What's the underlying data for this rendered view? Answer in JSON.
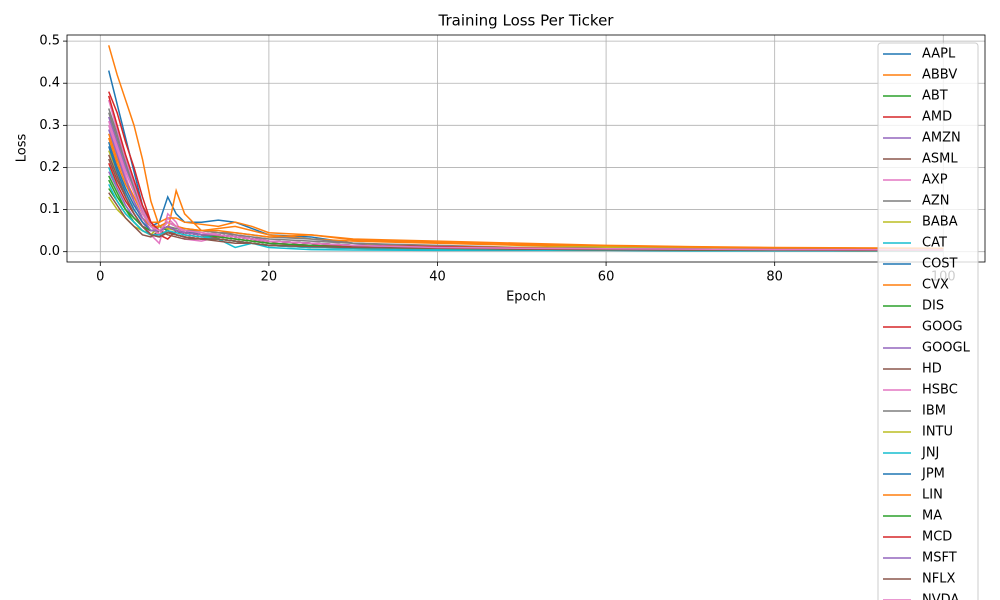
{
  "chart_data": {
    "type": "line",
    "title": "Training Loss Per Ticker",
    "x_label": "Epoch",
    "y_label": "Loss",
    "x": [
      1,
      2,
      3,
      4,
      5,
      6,
      7,
      8,
      9,
      10,
      12,
      14,
      16,
      18,
      20,
      25,
      30,
      40,
      50,
      60,
      70,
      80,
      90,
      100
    ],
    "xlim": [
      -3.95,
      104.95
    ],
    "xticks": [
      0,
      20,
      40,
      60,
      80,
      100
    ],
    "ylim": [
      -0.0245,
      0.5145
    ],
    "yticks": [
      {
        "value": 0,
        "label": "0.0"
      },
      0.1,
      0.2,
      0.3,
      0.4,
      0.5
    ],
    "grid": true,
    "legend": "upper right",
    "series": [
      {
        "name": "AAPL",
        "color": "#1f77b4",
        "values": [
          0.43,
          0.35,
          0.27,
          0.19,
          0.11,
          0.06,
          0.07,
          0.13,
          0.09,
          0.07,
          0.07,
          0.075,
          0.07,
          0.055,
          0.04,
          0.035,
          0.02,
          0.012,
          0.009,
          0.007,
          0.006,
          0.005,
          0.005,
          0.004
        ]
      },
      {
        "name": "ABBV",
        "color": "#ff7f0e",
        "values": [
          0.49,
          0.42,
          0.36,
          0.3,
          0.22,
          0.12,
          0.06,
          0.05,
          0.145,
          0.09,
          0.05,
          0.055,
          0.06,
          0.05,
          0.04,
          0.03,
          0.025,
          0.02,
          0.015,
          0.012,
          0.01,
          0.009,
          0.008,
          0.007
        ]
      },
      {
        "name": "ABT",
        "color": "#2ca02c",
        "values": [
          0.17,
          0.13,
          0.1,
          0.07,
          0.05,
          0.04,
          0.06,
          0.05,
          0.04,
          0.035,
          0.03,
          0.03,
          0.025,
          0.02,
          0.015,
          0.01,
          0.008,
          0.006,
          0.005,
          0.004,
          0.004,
          0.003,
          0.003,
          0.003
        ]
      },
      {
        "name": "AMD",
        "color": "#d62728",
        "values": [
          0.38,
          0.33,
          0.26,
          0.2,
          0.13,
          0.07,
          0.04,
          0.03,
          0.05,
          0.04,
          0.035,
          0.04,
          0.035,
          0.03,
          0.02,
          0.015,
          0.012,
          0.01,
          0.008,
          0.007,
          0.006,
          0.005,
          0.005,
          0.004
        ]
      },
      {
        "name": "AMZN",
        "color": "#9467bd",
        "values": [
          0.32,
          0.26,
          0.2,
          0.15,
          0.1,
          0.06,
          0.05,
          0.07,
          0.06,
          0.05,
          0.045,
          0.04,
          0.035,
          0.03,
          0.025,
          0.02,
          0.015,
          0.01,
          0.008,
          0.007,
          0.006,
          0.005,
          0.005,
          0.004
        ]
      },
      {
        "name": "ASML",
        "color": "#8c564b",
        "values": [
          0.22,
          0.17,
          0.13,
          0.09,
          0.06,
          0.04,
          0.035,
          0.05,
          0.04,
          0.035,
          0.03,
          0.03,
          0.025,
          0.02,
          0.015,
          0.012,
          0.01,
          0.008,
          0.006,
          0.005,
          0.004,
          0.004,
          0.003,
          0.003
        ]
      },
      {
        "name": "AXP",
        "color": "#e377c2",
        "values": [
          0.3,
          0.24,
          0.18,
          0.12,
          0.07,
          0.04,
          0.02,
          0.09,
          0.07,
          0.03,
          0.025,
          0.035,
          0.04,
          0.03,
          0.02,
          0.015,
          0.012,
          0.009,
          0.007,
          0.006,
          0.005,
          0.005,
          0.004,
          0.004
        ]
      },
      {
        "name": "AZN",
        "color": "#7f7f7f",
        "values": [
          0.34,
          0.28,
          0.22,
          0.16,
          0.1,
          0.06,
          0.05,
          0.06,
          0.055,
          0.05,
          0.05,
          0.045,
          0.045,
          0.04,
          0.035,
          0.03,
          0.02,
          0.012,
          0.01,
          0.008,
          0.007,
          0.006,
          0.005,
          0.005
        ]
      },
      {
        "name": "BABA",
        "color": "#bcbd22",
        "values": [
          0.13,
          0.1,
          0.08,
          0.06,
          0.05,
          0.04,
          0.06,
          0.055,
          0.05,
          0.045,
          0.04,
          0.04,
          0.035,
          0.03,
          0.025,
          0.02,
          0.015,
          0.012,
          0.01,
          0.012,
          0.01,
          0.009,
          0.008,
          0.008
        ]
      },
      {
        "name": "CAT",
        "color": "#17becf",
        "values": [
          0.2,
          0.15,
          0.11,
          0.08,
          0.06,
          0.05,
          0.05,
          0.06,
          0.05,
          0.045,
          0.04,
          0.03,
          0.01,
          0.02,
          0.01,
          0.005,
          0.004,
          0.003,
          0.003,
          0.003,
          0.002,
          0.002,
          0.002,
          0.002
        ]
      },
      {
        "name": "COST",
        "color": "#1f77b4",
        "values": [
          0.26,
          0.2,
          0.15,
          0.11,
          0.08,
          0.06,
          0.06,
          0.07,
          0.06,
          0.05,
          0.04,
          0.04,
          0.035,
          0.03,
          0.025,
          0.02,
          0.015,
          0.01,
          0.008,
          0.007,
          0.006,
          0.005,
          0.005,
          0.004
        ]
      },
      {
        "name": "CVX",
        "color": "#ff7f0e",
        "values": [
          0.28,
          0.22,
          0.17,
          0.13,
          0.09,
          0.07,
          0.07,
          0.08,
          0.08,
          0.07,
          0.065,
          0.06,
          0.07,
          0.06,
          0.045,
          0.04,
          0.03,
          0.025,
          0.02,
          0.015,
          0.012,
          0.01,
          0.009,
          0.008
        ]
      },
      {
        "name": "DIS",
        "color": "#2ca02c",
        "values": [
          0.15,
          0.12,
          0.09,
          0.07,
          0.05,
          0.04,
          0.04,
          0.05,
          0.04,
          0.035,
          0.03,
          0.03,
          0.025,
          0.02,
          0.015,
          0.012,
          0.01,
          0.008,
          0.006,
          0.005,
          0.004,
          0.004,
          0.003,
          0.003
        ]
      },
      {
        "name": "GOOG",
        "color": "#d62728",
        "values": [
          0.21,
          0.16,
          0.12,
          0.09,
          0.06,
          0.04,
          0.04,
          0.05,
          0.04,
          0.035,
          0.03,
          0.035,
          0.03,
          0.025,
          0.02,
          0.015,
          0.012,
          0.01,
          0.008,
          0.007,
          0.006,
          0.005,
          0.005,
          0.004
        ]
      },
      {
        "name": "GOOGL",
        "color": "#9467bd",
        "values": [
          0.19,
          0.15,
          0.11,
          0.08,
          0.06,
          0.05,
          0.05,
          0.06,
          0.05,
          0.045,
          0.04,
          0.04,
          0.035,
          0.03,
          0.025,
          0.02,
          0.015,
          0.01,
          0.008,
          0.007,
          0.006,
          0.005,
          0.005,
          0.004
        ]
      },
      {
        "name": "HD",
        "color": "#8c564b",
        "values": [
          0.14,
          0.11,
          0.08,
          0.06,
          0.04,
          0.035,
          0.05,
          0.04,
          0.035,
          0.03,
          0.03,
          0.025,
          0.02,
          0.02,
          0.015,
          0.01,
          0.008,
          0.006,
          0.005,
          0.004,
          0.004,
          0.003,
          0.003,
          0.003
        ]
      },
      {
        "name": "HSBC",
        "color": "#e377c2",
        "values": [
          0.36,
          0.29,
          0.22,
          0.16,
          0.1,
          0.06,
          0.04,
          0.08,
          0.06,
          0.045,
          0.04,
          0.045,
          0.04,
          0.035,
          0.025,
          0.02,
          0.015,
          0.01,
          0.008,
          0.007,
          0.006,
          0.005,
          0.005,
          0.004
        ]
      },
      {
        "name": "IBM",
        "color": "#7f7f7f",
        "values": [
          0.33,
          0.27,
          0.21,
          0.15,
          0.09,
          0.06,
          0.06,
          0.07,
          0.06,
          0.055,
          0.05,
          0.045,
          0.04,
          0.035,
          0.03,
          0.025,
          0.02,
          0.015,
          0.01,
          0.008,
          0.007,
          0.006,
          0.005,
          0.005
        ]
      },
      {
        "name": "INTU",
        "color": "#bcbd22",
        "values": [
          0.24,
          0.19,
          0.14,
          0.1,
          0.07,
          0.05,
          0.05,
          0.06,
          0.05,
          0.045,
          0.04,
          0.04,
          0.035,
          0.03,
          0.025,
          0.02,
          0.015,
          0.012,
          0.01,
          0.008,
          0.007,
          0.006,
          0.006,
          0.005
        ]
      },
      {
        "name": "JNJ",
        "color": "#17becf",
        "values": [
          0.16,
          0.12,
          0.09,
          0.07,
          0.05,
          0.04,
          0.04,
          0.05,
          0.045,
          0.04,
          0.035,
          0.03,
          0.025,
          0.02,
          0.015,
          0.01,
          0.008,
          0.006,
          0.005,
          0.004,
          0.004,
          0.003,
          0.003,
          0.003
        ]
      },
      {
        "name": "JPM",
        "color": "#1f77b4",
        "values": [
          0.25,
          0.19,
          0.14,
          0.1,
          0.07,
          0.05,
          0.05,
          0.06,
          0.05,
          0.045,
          0.04,
          0.04,
          0.035,
          0.03,
          0.025,
          0.02,
          0.015,
          0.01,
          0.008,
          0.007,
          0.006,
          0.005,
          0.005,
          0.004
        ]
      },
      {
        "name": "LIN",
        "color": "#ff7f0e",
        "values": [
          0.27,
          0.21,
          0.16,
          0.12,
          0.08,
          0.06,
          0.06,
          0.07,
          0.06,
          0.055,
          0.05,
          0.05,
          0.045,
          0.04,
          0.035,
          0.04,
          0.028,
          0.022,
          0.017,
          0.014,
          0.011,
          0.009,
          0.008,
          0.007
        ]
      },
      {
        "name": "MA",
        "color": "#2ca02c",
        "values": [
          0.18,
          0.14,
          0.1,
          0.08,
          0.06,
          0.05,
          0.05,
          0.06,
          0.05,
          0.045,
          0.04,
          0.035,
          0.03,
          0.025,
          0.02,
          0.015,
          0.01,
          0.008,
          0.006,
          0.005,
          0.004,
          0.004,
          0.003,
          0.003
        ]
      },
      {
        "name": "MCD",
        "color": "#d62728",
        "values": [
          0.37,
          0.3,
          0.23,
          0.17,
          0.11,
          0.07,
          0.05,
          0.06,
          0.05,
          0.045,
          0.04,
          0.04,
          0.035,
          0.03,
          0.025,
          0.02,
          0.015,
          0.012,
          0.009,
          0.007,
          0.006,
          0.005,
          0.005,
          0.004
        ]
      },
      {
        "name": "MSFT",
        "color": "#9467bd",
        "values": [
          0.29,
          0.23,
          0.17,
          0.12,
          0.08,
          0.05,
          0.05,
          0.06,
          0.05,
          0.045,
          0.04,
          0.04,
          0.035,
          0.03,
          0.025,
          0.02,
          0.015,
          0.01,
          0.008,
          0.007,
          0.006,
          0.005,
          0.005,
          0.004
        ]
      },
      {
        "name": "NFLX",
        "color": "#8c564b",
        "values": [
          0.23,
          0.18,
          0.13,
          0.09,
          0.06,
          0.04,
          0.035,
          0.045,
          0.04,
          0.035,
          0.03,
          0.03,
          0.025,
          0.02,
          0.015,
          0.012,
          0.01,
          0.008,
          0.006,
          0.005,
          0.004,
          0.004,
          0.003,
          0.003
        ]
      },
      {
        "name": "NVDA",
        "color": "#e377c2",
        "values": [
          0.31,
          0.25,
          0.19,
          0.14,
          0.09,
          0.06,
          0.05,
          0.07,
          0.06,
          0.05,
          0.045,
          0.04,
          0.035,
          0.03,
          0.025,
          0.02,
          0.015,
          0.01,
          0.008,
          0.007,
          0.006,
          0.005,
          0.005,
          0.004
        ]
      }
    ]
  }
}
